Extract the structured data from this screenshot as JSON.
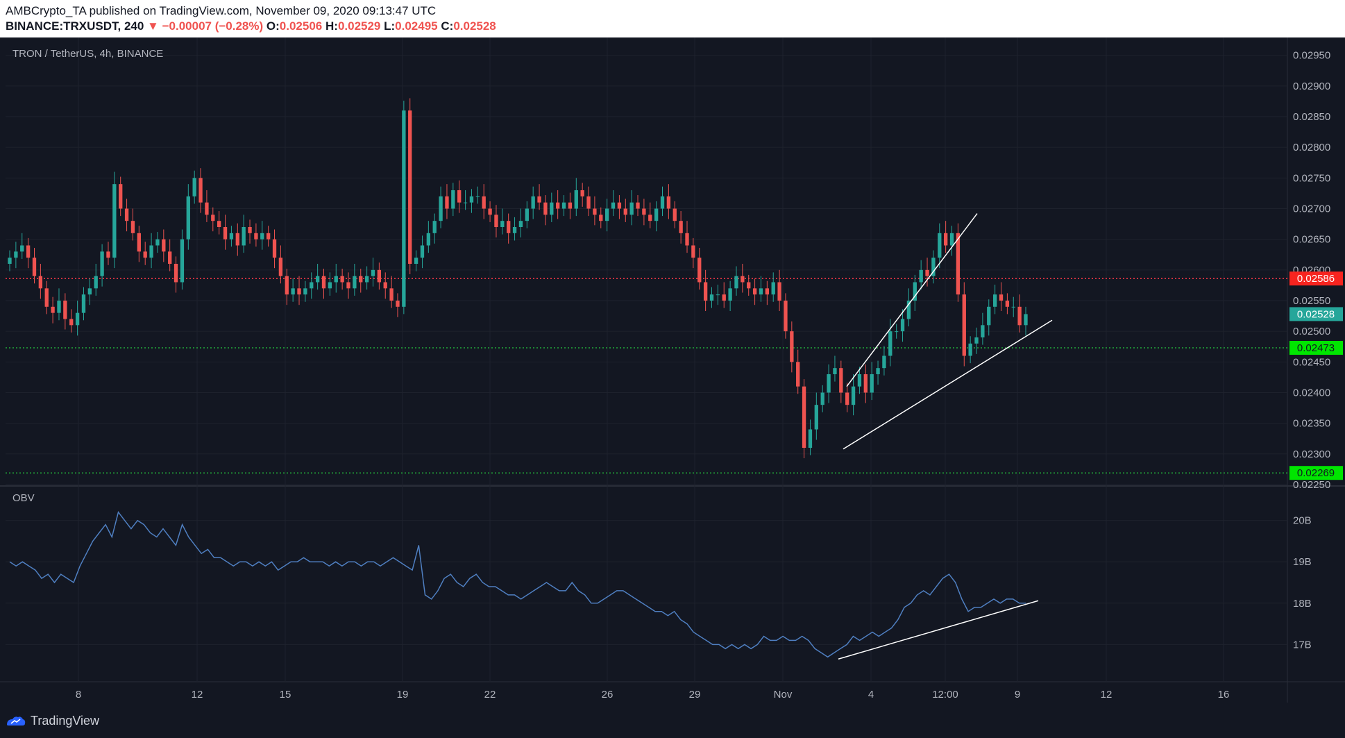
{
  "header": {
    "publisher_line": "AMBCrypto_TA published on TradingView.com, November 09, 2020 09:13:47 UTC",
    "symbol": "BINANCE:TRXUSDT, 240",
    "change": "−0.00007 (−0.28%)",
    "o_label": "O:",
    "o_value": "0.02506",
    "h_label": "H:",
    "h_value": "0.02529",
    "l_label": "L:",
    "l_value": "0.02495",
    "c_label": "C:",
    "c_value": "0.02528"
  },
  "footer": {
    "brand": "TradingView"
  },
  "colors": {
    "background": "#131722",
    "up": "#26a69a",
    "down": "#ef5350",
    "grid": "#1e222d",
    "axis_text": "#b2b5be",
    "obv_line": "#4f7fc1",
    "resistance_line": "#f23645",
    "support_line": "#22ab3a",
    "trend_line": "#ffffff"
  },
  "chart_data": [
    {
      "type": "candlestick",
      "title": "TRON / TetherUS, 4h, BINANCE",
      "x_tick_labels": [
        "8",
        "12",
        "15",
        "19",
        "22",
        "26",
        "29",
        "Nov",
        "4",
        "12:00",
        "9",
        "12",
        "16"
      ],
      "y_tick_labels": [
        "0.02950",
        "0.02900",
        "0.02850",
        "0.02800",
        "0.02750",
        "0.02700",
        "0.02650",
        "0.02600",
        "0.02550",
        "0.02500",
        "0.02450",
        "0.02400",
        "0.02350",
        "0.02300",
        "0.02250"
      ],
      "ylim": [
        0.0225,
        0.0297
      ],
      "price_badges": [
        {
          "label": "0.02586",
          "value": 0.02586,
          "type": "resistance"
        },
        {
          "label": "0.02528",
          "value": 0.02528,
          "type": "last_price"
        },
        {
          "label": "0.02473",
          "value": 0.02473,
          "type": "support"
        },
        {
          "label": "0.02269",
          "value": 0.02269,
          "type": "support"
        }
      ],
      "close_approx": [
        0.0262,
        0.0263,
        0.0264,
        0.0262,
        0.0259,
        0.0257,
        0.0254,
        0.0253,
        0.0255,
        0.0252,
        0.0251,
        0.0253,
        0.0256,
        0.0257,
        0.0259,
        0.0263,
        0.0262,
        0.0274,
        0.027,
        0.0268,
        0.0266,
        0.0263,
        0.0262,
        0.0264,
        0.0265,
        0.0263,
        0.0261,
        0.0258,
        0.0265,
        0.0272,
        0.0275,
        0.0271,
        0.0269,
        0.0268,
        0.0267,
        0.0265,
        0.0266,
        0.0264,
        0.0267,
        0.0266,
        0.0265,
        0.0266,
        0.0265,
        0.0262,
        0.0259,
        0.0256,
        0.0257,
        0.0256,
        0.0257,
        0.0258,
        0.0259,
        0.0257,
        0.0258,
        0.0259,
        0.0258,
        0.0257,
        0.0259,
        0.0258,
        0.0259,
        0.026,
        0.0258,
        0.0257,
        0.0255,
        0.0254,
        0.0286,
        0.0261,
        0.0262,
        0.0264,
        0.0266,
        0.0268,
        0.0272,
        0.027,
        0.0273,
        0.0271,
        0.0271,
        0.0272,
        0.0272,
        0.027,
        0.0269,
        0.0267,
        0.0268,
        0.0266,
        0.0267,
        0.0268,
        0.027,
        0.0272,
        0.0271,
        0.0269,
        0.0271,
        0.027,
        0.0271,
        0.027,
        0.0273,
        0.0272,
        0.027,
        0.0269,
        0.0268,
        0.027,
        0.0271,
        0.027,
        0.0269,
        0.0271,
        0.027,
        0.0269,
        0.0268,
        0.027,
        0.0272,
        0.027,
        0.0268,
        0.0266,
        0.0264,
        0.0262,
        0.0258,
        0.0255,
        0.0256,
        0.0256,
        0.0255,
        0.0257,
        0.0259,
        0.0258,
        0.0257,
        0.0256,
        0.0257,
        0.0256,
        0.0258,
        0.0255,
        0.025,
        0.0245,
        0.0241,
        0.0231,
        0.0234,
        0.0238,
        0.024,
        0.0243,
        0.0244,
        0.024,
        0.0238,
        0.0241,
        0.0243,
        0.024,
        0.0243,
        0.0244,
        0.0246,
        0.025,
        0.025,
        0.0252,
        0.0255,
        0.0258,
        0.026,
        0.0259,
        0.0262,
        0.0266,
        0.0264,
        0.0266,
        0.0256,
        0.0246,
        0.0248,
        0.0249,
        0.0251,
        0.0254,
        0.0256,
        0.0255,
        0.0254,
        0.0254,
        0.0251,
        0.02528
      ]
    },
    {
      "type": "line",
      "title": "OBV",
      "y_tick_labels": [
        "20B",
        "19B",
        "18B",
        "17B"
      ],
      "ylim": [
        16.1,
        20.8
      ],
      "values_approx": [
        19.0,
        18.9,
        19.0,
        18.9,
        18.8,
        18.6,
        18.7,
        18.5,
        18.7,
        18.6,
        18.5,
        18.9,
        19.2,
        19.5,
        19.7,
        19.9,
        19.6,
        20.2,
        20.0,
        19.8,
        20.0,
        19.9,
        19.7,
        19.6,
        19.8,
        19.6,
        19.4,
        19.9,
        19.6,
        19.4,
        19.2,
        19.3,
        19.1,
        19.1,
        19.0,
        18.9,
        19.0,
        19.0,
        18.9,
        19.0,
        18.9,
        19.0,
        18.8,
        18.9,
        19.0,
        19.0,
        19.1,
        19.0,
        19.0,
        19.0,
        18.9,
        19.0,
        18.9,
        19.0,
        19.0,
        18.9,
        19.0,
        19.0,
        18.9,
        19.0,
        19.1,
        19.0,
        18.9,
        18.8,
        19.4,
        18.2,
        18.1,
        18.3,
        18.6,
        18.7,
        18.5,
        18.4,
        18.6,
        18.7,
        18.5,
        18.4,
        18.4,
        18.3,
        18.2,
        18.2,
        18.1,
        18.2,
        18.3,
        18.4,
        18.5,
        18.4,
        18.3,
        18.3,
        18.5,
        18.3,
        18.2,
        18.0,
        18.0,
        18.1,
        18.2,
        18.3,
        18.3,
        18.2,
        18.1,
        18.0,
        17.9,
        17.8,
        17.8,
        17.7,
        17.8,
        17.6,
        17.5,
        17.3,
        17.2,
        17.1,
        17.0,
        17.0,
        16.9,
        17.0,
        16.9,
        17.0,
        16.9,
        17.0,
        17.2,
        17.1,
        17.1,
        17.2,
        17.1,
        17.1,
        17.2,
        17.1,
        16.9,
        16.8,
        16.7,
        16.8,
        16.9,
        17.0,
        17.2,
        17.1,
        17.2,
        17.3,
        17.2,
        17.3,
        17.4,
        17.6,
        17.9,
        18.0,
        18.2,
        18.3,
        18.2,
        18.4,
        18.6,
        18.7,
        18.5,
        18.1,
        17.8,
        17.9,
        17.9,
        18.0,
        18.1,
        18.0,
        18.1,
        18.1,
        18.0,
        18.0
      ]
    }
  ]
}
